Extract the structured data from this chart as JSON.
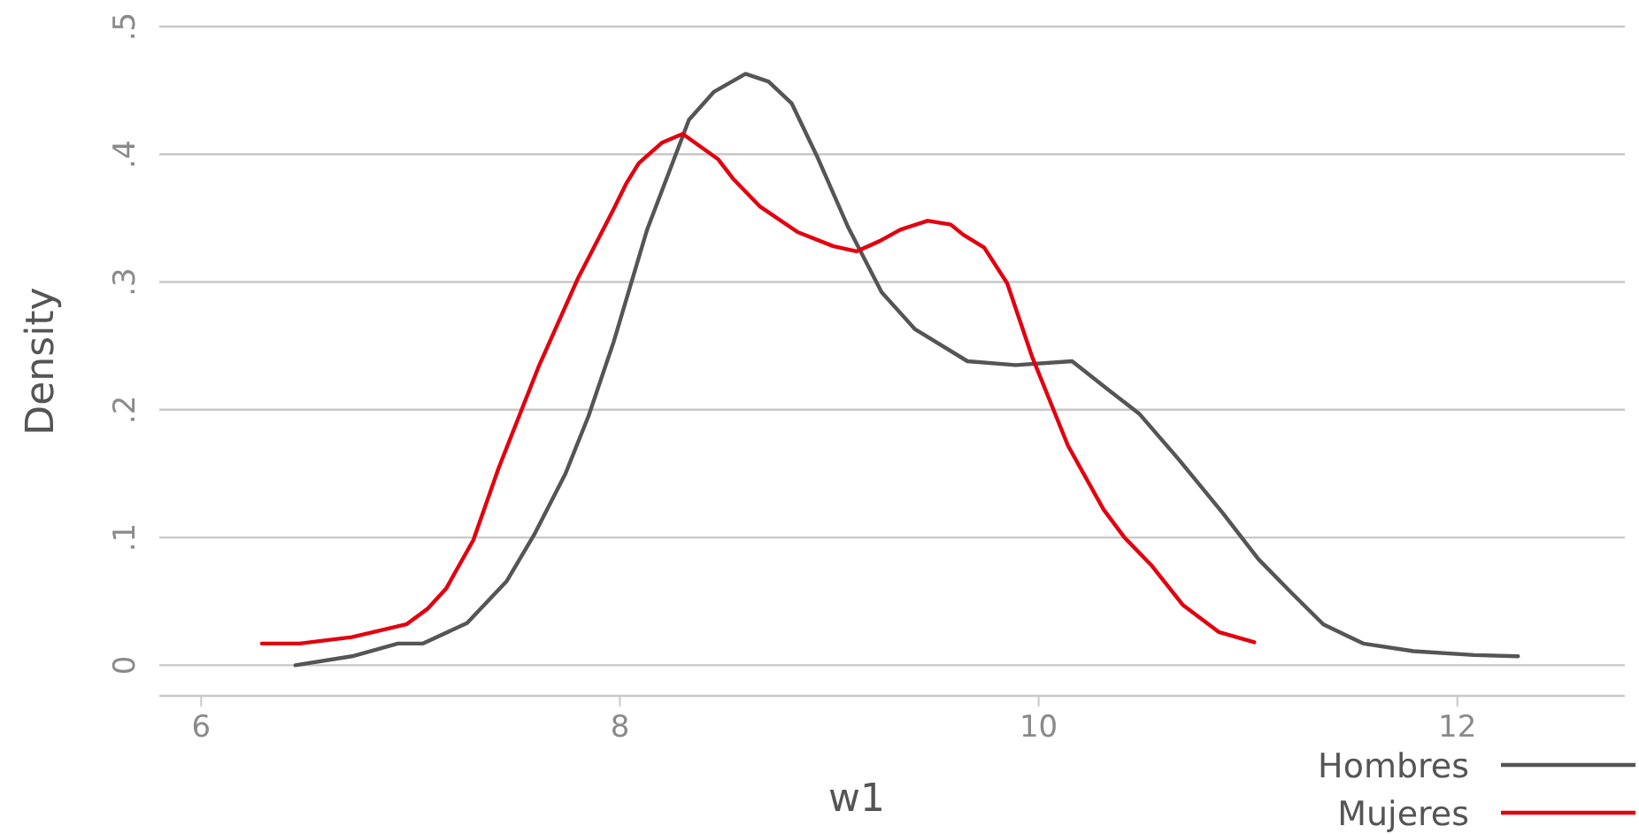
{
  "chart_data": {
    "type": "line",
    "xlabel": "w1",
    "ylabel": "Density",
    "xlim": [
      5.8,
      12.8
    ],
    "xticks": [
      6,
      8,
      10,
      12
    ],
    "ylim": [
      -0.024,
      0.5
    ],
    "yticks": [
      0,
      {
        "value": 0.1,
        "label": ".1"
      },
      {
        "value": 0.2,
        "label": ".2"
      },
      {
        "value": 0.3,
        "label": ".3"
      },
      {
        "value": 0.4,
        "label": ".4"
      },
      {
        "value": 0.5,
        "label": ".5"
      }
    ],
    "grid": "y",
    "legend": "bottom right",
    "marker": "none",
    "line_style": "solid",
    "series": [
      {
        "name": "Hombres",
        "color": "#555555",
        "x": [
          6.45,
          6.72,
          6.94,
          7.06,
          7.27,
          7.46,
          7.59,
          7.74,
          7.85,
          7.97,
          8.13,
          8.33,
          8.45,
          8.6,
          8.71,
          8.82,
          8.94,
          9.09,
          9.25,
          9.41,
          9.66,
          9.89,
          10.16,
          10.33,
          10.48,
          10.67,
          10.88,
          11.05,
          11.2,
          11.36,
          11.55,
          11.79,
          12.08,
          12.29
        ],
        "values": [
          0.0,
          0.007,
          0.017,
          0.017,
          0.033,
          0.066,
          0.102,
          0.15,
          0.195,
          0.253,
          0.341,
          0.427,
          0.449,
          0.463,
          0.457,
          0.44,
          0.399,
          0.343,
          0.292,
          0.263,
          0.238,
          0.235,
          0.238,
          0.216,
          0.197,
          0.161,
          0.119,
          0.083,
          0.058,
          0.032,
          0.017,
          0.011,
          0.008,
          0.007
        ]
      },
      {
        "name": "Mujeres",
        "color": "#e3000f",
        "x": [
          6.29,
          6.47,
          6.72,
          6.98,
          7.08,
          7.17,
          7.3,
          7.42,
          7.61,
          7.8,
          7.97,
          8.03,
          8.09,
          8.2,
          8.3,
          8.47,
          8.54,
          8.67,
          8.85,
          9.02,
          9.13,
          9.24,
          9.34,
          9.47,
          9.58,
          9.64,
          9.74,
          9.85,
          9.97,
          10.14,
          10.31,
          10.41,
          10.54,
          10.69,
          10.86,
          11.03
        ],
        "values": [
          0.017,
          0.017,
          0.022,
          0.032,
          0.044,
          0.06,
          0.098,
          0.154,
          0.233,
          0.303,
          0.357,
          0.377,
          0.393,
          0.409,
          0.416,
          0.396,
          0.381,
          0.359,
          0.339,
          0.328,
          0.324,
          0.332,
          0.341,
          0.348,
          0.345,
          0.337,
          0.327,
          0.299,
          0.241,
          0.172,
          0.122,
          0.1,
          0.078,
          0.047,
          0.026,
          0.018
        ]
      }
    ]
  }
}
